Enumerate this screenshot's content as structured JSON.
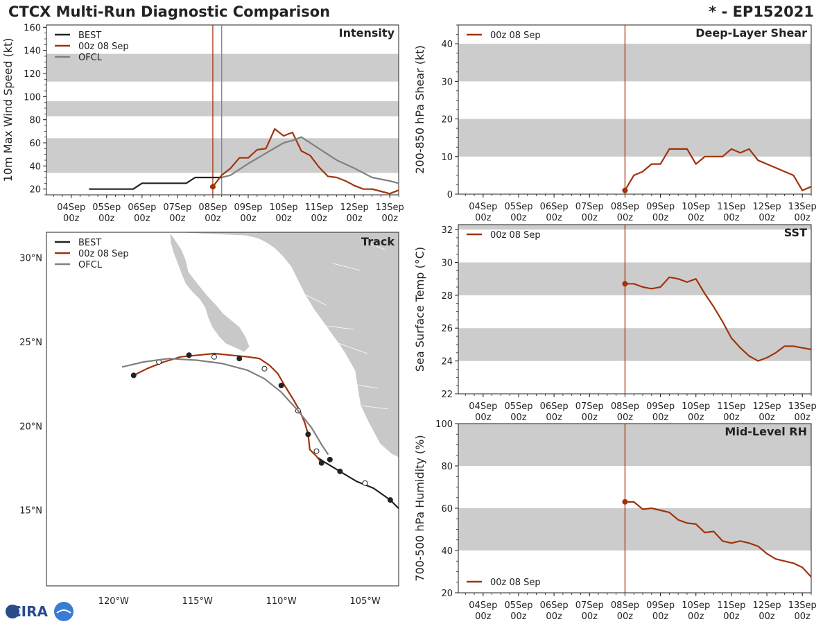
{
  "header": {
    "title": "CTCX Multi-Run Diagnostic Comparison",
    "storm": "* - EP152021"
  },
  "colors": {
    "best": "#222222",
    "run": "#a0330a",
    "ofcl": "#808080",
    "band": "#cccccc",
    "land": "#c8c8c8"
  },
  "time_axis": {
    "days": [
      "04Sep",
      "05Sep",
      "06Sep",
      "07Sep",
      "08Sep",
      "09Sep",
      "10Sep",
      "11Sep",
      "12Sep",
      "13Sep"
    ],
    "hour_label": "00z"
  },
  "chart_data": [
    {
      "id": "intensity",
      "type": "line",
      "title": "Intensity",
      "ylabel": "10m Max Wind Speed (kt)",
      "xlim": [
        -0.7,
        9.25
      ],
      "ylim": [
        15,
        162
      ],
      "yticks": [
        20,
        40,
        60,
        80,
        100,
        120,
        140,
        160
      ],
      "bands": [
        [
          34,
          64
        ],
        [
          83,
          96
        ],
        [
          113,
          137
        ]
      ],
      "vlines": [
        {
          "x": 4.0,
          "series": "run"
        },
        {
          "x": 4.25,
          "series": "ofcl"
        }
      ],
      "legend": [
        "BEST",
        "00z 08 Sep",
        "OFCL"
      ],
      "series": [
        {
          "name": "BEST",
          "key": "best",
          "x": [
            0.5,
            1.0,
            1.5,
            1.75,
            2.0,
            2.5,
            3.0,
            3.25,
            3.5,
            4.0,
            4.25
          ],
          "y": [
            20,
            20,
            20,
            20,
            25,
            25,
            25,
            25,
            30,
            30,
            30
          ]
        },
        {
          "name": "00z 08 Sep",
          "key": "run",
          "x": [
            4.0,
            4.25,
            4.5,
            4.75,
            5.0,
            5.25,
            5.5,
            5.75,
            6.0,
            6.25,
            6.5,
            6.75,
            7.0,
            7.25,
            7.5,
            7.75,
            8.0,
            8.25,
            8.5,
            8.75,
            9.0,
            9.25
          ],
          "y": [
            22,
            32,
            38,
            47,
            47,
            54,
            55,
            72,
            66,
            69,
            53,
            49,
            39,
            31,
            30,
            27,
            23,
            20,
            20,
            18,
            16,
            19
          ],
          "start_marker": true
        },
        {
          "name": "OFCL",
          "key": "ofcl",
          "x": [
            4.25,
            4.5,
            5.0,
            5.5,
            6.0,
            6.25,
            6.5,
            7.0,
            7.25,
            7.5,
            8.0,
            8.25,
            8.5,
            9.0,
            9.25
          ],
          "y": [
            30,
            32,
            42,
            51,
            60,
            62,
            65,
            55,
            50,
            45,
            38,
            34,
            30,
            27,
            25
          ]
        }
      ]
    },
    {
      "id": "shear",
      "type": "line",
      "title": "Deep-Layer Shear",
      "ylabel": "200-850 hPa Shear (kt)",
      "xlim": [
        -0.7,
        9.25
      ],
      "ylim": [
        0,
        45
      ],
      "yticks": [
        0,
        10,
        20,
        30,
        40
      ],
      "bands": [
        [
          10,
          20
        ],
        [
          30,
          40
        ]
      ],
      "vlines": [
        {
          "x": 4.0,
          "series": "run"
        }
      ],
      "legend": [
        "00z 08 Sep"
      ],
      "series": [
        {
          "name": "00z 08 Sep",
          "key": "run",
          "x": [
            4.0,
            4.25,
            4.5,
            4.75,
            5.0,
            5.25,
            5.5,
            5.75,
            6.0,
            6.25,
            6.5,
            6.75,
            7.0,
            7.25,
            7.5,
            7.75,
            8.0,
            8.25,
            8.5,
            8.75,
            9.0,
            9.25
          ],
          "y": [
            1,
            5,
            6,
            8,
            8,
            12,
            12,
            12,
            8,
            10,
            10,
            10,
            12,
            11,
            12,
            9,
            8,
            7,
            6,
            5,
            1,
            2
          ],
          "start_marker": true
        }
      ]
    },
    {
      "id": "sst",
      "type": "line",
      "title": "SST",
      "ylabel": "Sea Surface Temp (°C)",
      "xlim": [
        -0.7,
        9.25
      ],
      "ylim": [
        22,
        32.3
      ],
      "yticks": [
        22,
        24,
        26,
        28,
        30,
        32
      ],
      "bands": [
        [
          24,
          26
        ],
        [
          28,
          30
        ],
        [
          32,
          34
        ]
      ],
      "vlines": [
        {
          "x": 4.0,
          "series": "run"
        }
      ],
      "legend": [
        "00z 08 Sep"
      ],
      "series": [
        {
          "name": "00z 08 Sep",
          "key": "run",
          "x": [
            4.0,
            4.25,
            4.5,
            4.75,
            5.0,
            5.25,
            5.5,
            5.75,
            6.0,
            6.25,
            6.5,
            6.75,
            7.0,
            7.25,
            7.5,
            7.75,
            8.0,
            8.25,
            8.5,
            8.75,
            9.0,
            9.25
          ],
          "y": [
            28.7,
            28.7,
            28.5,
            28.4,
            28.5,
            29.1,
            29.0,
            28.8,
            29.0,
            28.1,
            27.3,
            26.4,
            25.4,
            24.8,
            24.3,
            24.0,
            24.2,
            24.5,
            24.9,
            24.9,
            24.8,
            24.7
          ],
          "start_marker": true
        }
      ]
    },
    {
      "id": "rh",
      "type": "line",
      "title": "Mid-Level RH",
      "ylabel": "700-500 hPa Humidity (%)",
      "xlim": [
        -0.7,
        9.25
      ],
      "ylim": [
        20,
        100
      ],
      "yticks": [
        20,
        40,
        60,
        80,
        100
      ],
      "bands": [
        [
          40,
          60
        ],
        [
          80,
          100
        ]
      ],
      "vlines": [
        {
          "x": 4.0,
          "series": "run"
        }
      ],
      "legend": [
        "00z 08 Sep"
      ],
      "legend_pos": "bottom-left",
      "series": [
        {
          "name": "00z 08 Sep",
          "key": "run",
          "x": [
            4.0,
            4.25,
            4.5,
            4.75,
            5.0,
            5.25,
            5.5,
            5.75,
            6.0,
            6.25,
            6.5,
            6.75,
            7.0,
            7.25,
            7.5,
            7.75,
            8.0,
            8.25,
            8.5,
            8.75,
            9.0,
            9.25
          ],
          "y": [
            63,
            63,
            59.5,
            60,
            59,
            58,
            54.5,
            53,
            52.5,
            48.5,
            49,
            44.5,
            43.5,
            44.5,
            43.5,
            42,
            38.5,
            36,
            35,
            34,
            32,
            27.5
          ],
          "start_marker": true
        }
      ]
    },
    {
      "id": "track",
      "type": "scatter",
      "title": "Track",
      "xlim": [
        -124,
        -103
      ],
      "ylim": [
        10.5,
        31.5
      ],
      "xticks": [
        -120,
        -115,
        -110,
        -105
      ],
      "xtick_labels": [
        "120°W",
        "115°W",
        "110°W",
        "105°W"
      ],
      "yticks": [
        15,
        20,
        25,
        30
      ],
      "ytick_labels": [
        "15°N",
        "20°N",
        "25°N",
        "30°N"
      ],
      "legend": [
        "BEST",
        "00z 08 Sep",
        "OFCL"
      ],
      "series": [
        {
          "name": "BEST",
          "key": "best",
          "lon": [
            -103.0,
            -103.5,
            -104.5,
            -105.5,
            -106.5,
            -107.0,
            -107.5,
            -107.8
          ],
          "lat": [
            15.1,
            15.6,
            16.3,
            16.7,
            17.3,
            17.6,
            17.9,
            18.1
          ],
          "markers": [
            {
              "lon": -103.5,
              "lat": 15.6,
              "filled": true
            },
            {
              "lon": -105.0,
              "lat": 16.6,
              "filled": false
            },
            {
              "lon": -106.5,
              "lat": 17.3,
              "filled": true
            },
            {
              "lon": -107.1,
              "lat": 18.0,
              "filled": true
            }
          ]
        },
        {
          "name": "00z 08 Sep",
          "key": "run",
          "lon": [
            -107.6,
            -107.9,
            -108.3,
            -108.4,
            -108.6,
            -108.9,
            -109.3,
            -109.8,
            -110.2,
            -110.7,
            -111.3,
            -112.0,
            -113.0,
            -114.0,
            -115.0,
            -116.0,
            -117.0,
            -118.0,
            -118.8
          ],
          "lat": [
            17.8,
            18.2,
            18.6,
            19.5,
            20.2,
            20.9,
            21.6,
            22.4,
            23.1,
            23.6,
            24.0,
            24.1,
            24.2,
            24.3,
            24.2,
            24.1,
            23.8,
            23.4,
            23.0
          ],
          "markers": [
            {
              "lon": -107.6,
              "lat": 17.8,
              "filled": true
            },
            {
              "lon": -107.9,
              "lat": 18.5,
              "filled": false
            },
            {
              "lon": -108.4,
              "lat": 19.5,
              "filled": true
            },
            {
              "lon": -109.0,
              "lat": 20.9,
              "filled": false
            },
            {
              "lon": -110.0,
              "lat": 22.4,
              "filled": true
            },
            {
              "lon": -111.0,
              "lat": 23.4,
              "filled": false
            },
            {
              "lon": -112.5,
              "lat": 24.0,
              "filled": true
            },
            {
              "lon": -114.0,
              "lat": 24.1,
              "filled": false
            },
            {
              "lon": -115.5,
              "lat": 24.2,
              "filled": true
            },
            {
              "lon": -117.3,
              "lat": 23.8,
              "filled": false
            },
            {
              "lon": -118.8,
              "lat": 23.0,
              "filled": true
            }
          ]
        },
        {
          "name": "OFCL",
          "key": "ofcl",
          "lon": [
            -107.2,
            -107.6,
            -108.2,
            -109.0,
            -110.0,
            -111.0,
            -112.0,
            -113.5,
            -115.0,
            -116.7,
            -118.2,
            -119.5
          ],
          "lat": [
            18.3,
            18.9,
            19.9,
            20.9,
            22.0,
            22.8,
            23.3,
            23.7,
            23.9,
            24.0,
            23.8,
            23.5
          ]
        }
      ]
    }
  ],
  "logo": {
    "text": "CIRA"
  }
}
